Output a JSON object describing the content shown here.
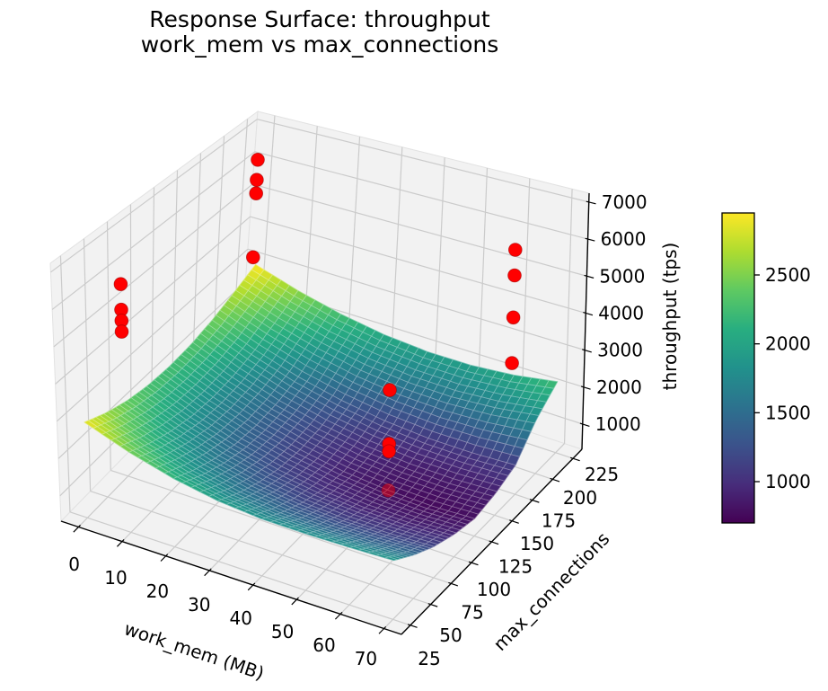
{
  "title": {
    "line1": "Response Surface: throughput",
    "line2": "work_mem vs max_connections"
  },
  "axes": {
    "x": {
      "label": "work_mem (MB)",
      "ticks": [
        0,
        10,
        20,
        30,
        40,
        50,
        60,
        70
      ],
      "range": [
        -4,
        74
      ]
    },
    "y": {
      "label": "max_connections",
      "ticks": [
        25,
        50,
        75,
        100,
        125,
        150,
        175,
        200,
        225
      ],
      "range": [
        14,
        236
      ]
    },
    "z": {
      "label": "throughput (tps)",
      "ticks": [
        1000,
        2000,
        3000,
        4000,
        5000,
        6000,
        7000
      ],
      "range": [
        320,
        7240
      ]
    }
  },
  "colorbar": {
    "colormap": "viridis",
    "vmin": 700,
    "vmax": 2950,
    "ticks": [
      1000,
      1500,
      2000,
      2500
    ]
  },
  "colors": {
    "marker": "#ff0000",
    "marker_edge": "#990000",
    "pane": "#f2f2f2",
    "pane_edge": "#e2e2e2",
    "grid": "#cbcbcb",
    "spine": "#000000"
  },
  "chart_data": {
    "type": "3d-surface-with-scatter",
    "title": "Response Surface: throughput work_mem vs max_connections",
    "xlabel": "work_mem (MB)",
    "ylabel": "max_connections",
    "zlabel": "throughput (tps)",
    "surface": {
      "x_values": [
        0,
        10,
        20,
        30,
        40,
        50,
        60,
        70
      ],
      "y_values": [
        25,
        50,
        75,
        100,
        125,
        150,
        175,
        200,
        225
      ],
      "z_grid": [
        [
          2900,
          2480,
          2160,
          1950,
          1850,
          1840,
          1860,
          1900
        ],
        [
          2620,
          2190,
          1850,
          1610,
          1480,
          1440,
          1450,
          1490
        ],
        [
          2420,
          1970,
          1610,
          1350,
          1190,
          1120,
          1120,
          1160
        ],
        [
          2300,
          1830,
          1450,
          1170,
          990,
          900,
          890,
          930
        ],
        [
          2270,
          1790,
          1400,
          1110,
          900,
          790,
          750,
          790
        ],
        [
          2320,
          1840,
          1450,
          1160,
          970,
          870,
          850,
          890
        ],
        [
          2460,
          1990,
          1610,
          1340,
          1160,
          1070,
          1060,
          1110
        ],
        [
          2680,
          2260,
          1930,
          1700,
          1580,
          1560,
          1640,
          1800
        ],
        [
          2950,
          2560,
          2260,
          2060,
          1960,
          1960,
          2060,
          2250
        ]
      ]
    },
    "points": [
      {
        "work_mem": 4,
        "max_connections": 50,
        "throughput": 6300
      },
      {
        "work_mem": 4,
        "max_connections": 50,
        "throughput": 5600
      },
      {
        "work_mem": 4,
        "max_connections": 50,
        "throughput": 5300
      },
      {
        "work_mem": 4,
        "max_connections": 50,
        "throughput": 5000
      },
      {
        "work_mem": 4,
        "max_connections": 200,
        "throughput": 6800
      },
      {
        "work_mem": 4,
        "max_connections": 200,
        "throughput": 6200
      },
      {
        "work_mem": 4,
        "max_connections": 200,
        "throughput": 5800
      },
      {
        "work_mem": 4,
        "max_connections": 200,
        "throughput": 3900
      },
      {
        "work_mem": 64,
        "max_connections": 50,
        "throughput": 5700
      },
      {
        "work_mem": 64,
        "max_connections": 50,
        "throughput": 4250
      },
      {
        "work_mem": 64,
        "max_connections": 50,
        "throughput": 4050
      },
      {
        "work_mem": 64,
        "max_connections": 50,
        "throughput": 3000,
        "occluded": true
      },
      {
        "work_mem": 64,
        "max_connections": 200,
        "throughput": 6200
      },
      {
        "work_mem": 64,
        "max_connections": 200,
        "throughput": 5500
      },
      {
        "work_mem": 64,
        "max_connections": 200,
        "throughput": 4350
      },
      {
        "work_mem": 64,
        "max_connections": 200,
        "throughput": 3100
      }
    ]
  }
}
